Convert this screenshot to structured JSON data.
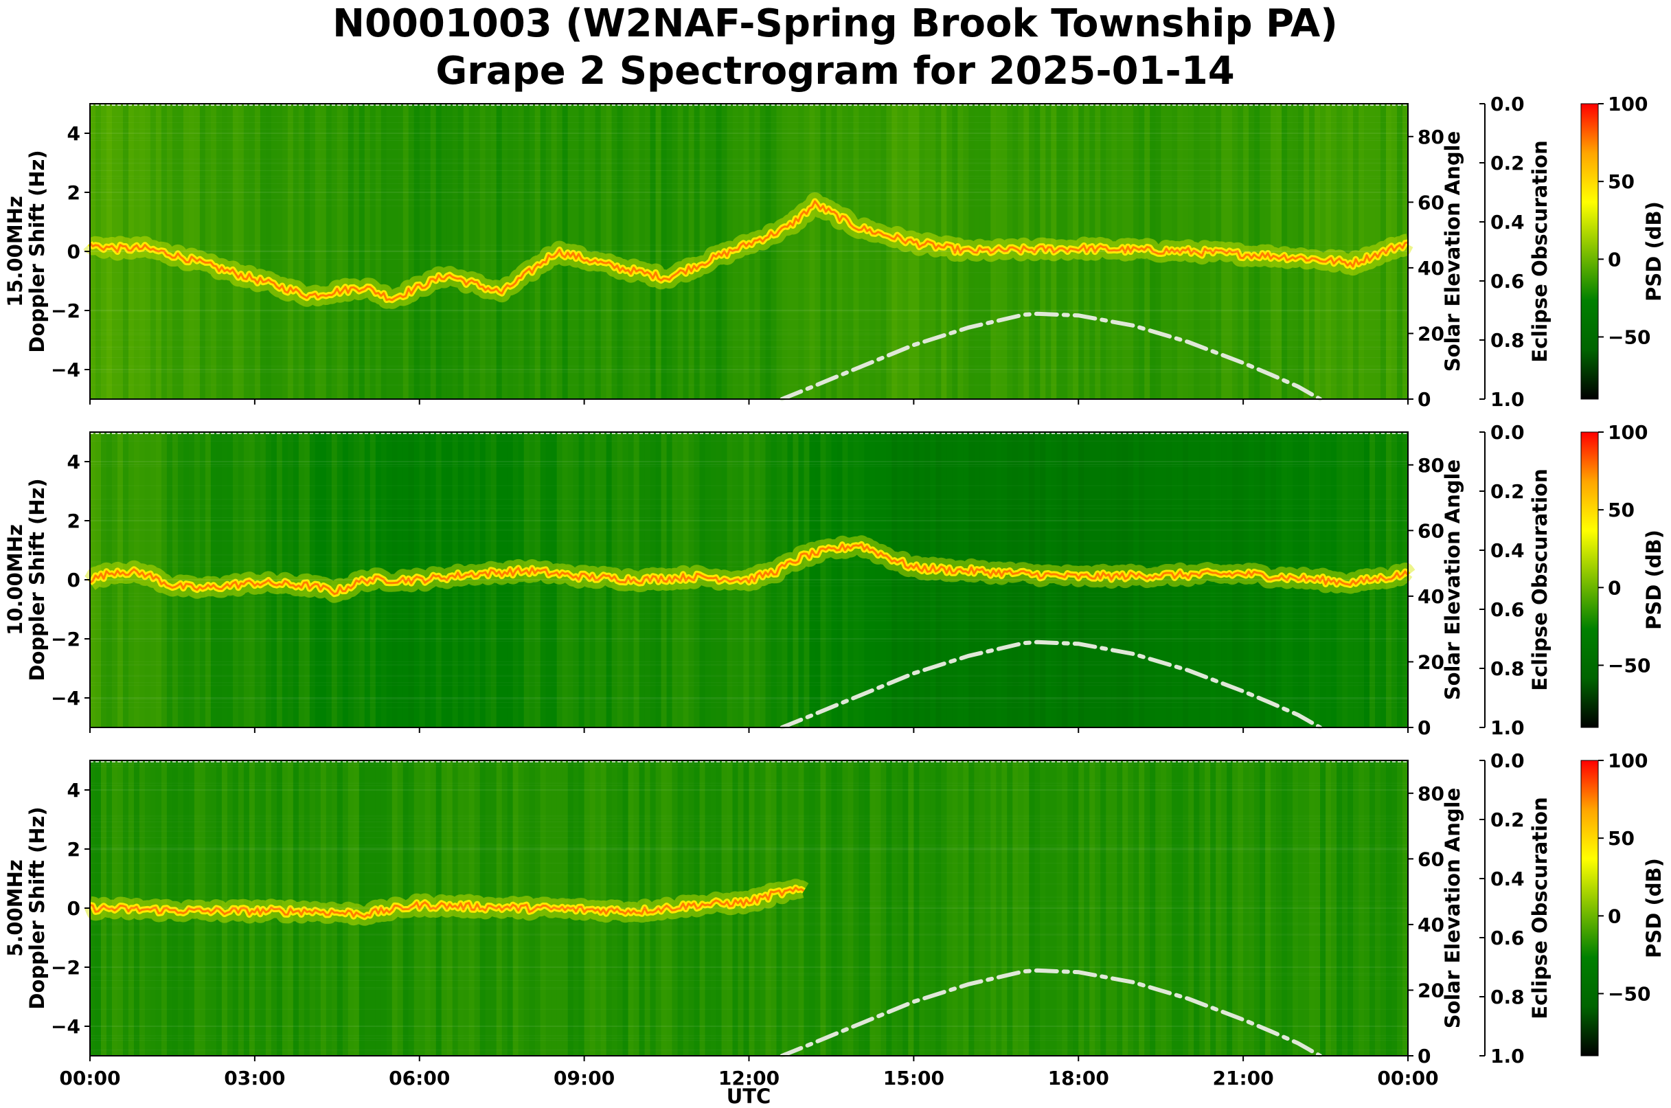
{
  "chart_data": {
    "type": "heatmap",
    "title": "N0001003 (W2NAF-Spring Brook Township PA)",
    "subtitle": "Grape 2 Spectrogram for 2025-01-14",
    "xlabel": "UTC",
    "x_ticks": [
      "00:00",
      "03:00",
      "06:00",
      "09:00",
      "12:00",
      "15:00",
      "18:00",
      "21:00",
      "00:00"
    ],
    "x_range_hours": [
      0,
      24
    ],
    "colormap": [
      "#000000",
      "#006400",
      "#008000",
      "#7fbf00",
      "#ffff00",
      "#ffa500",
      "#ff0000"
    ],
    "colorbar": {
      "label": "PSD (dB)",
      "range": [
        -90,
        100
      ],
      "ticks": [
        100,
        50,
        0,
        -50
      ],
      "tick_labels": [
        "100",
        "50",
        "0",
        "−50"
      ]
    },
    "eclipse_axis": {
      "label": "Eclipse Obscuration",
      "range": [
        0,
        1
      ],
      "inverted": true,
      "tick_labels": [
        "0.0",
        "0.2",
        "0.4",
        "0.6",
        "0.8",
        "1.0"
      ]
    },
    "panels": [
      {
        "name": "15.00MHz",
        "ylabel_line1": "15.00MHz",
        "ylabel_line2": "Doppler Shift (Hz)",
        "ylim": [
          -5,
          5
        ],
        "y_ticks": [
          4,
          2,
          0,
          -2,
          -4
        ],
        "y_tick_labels": [
          "4",
          "2",
          "0",
          "−2",
          "−4"
        ],
        "y2label": "Solar Elevation Angle",
        "y2lim": [
          0,
          90
        ],
        "y2_ticks": [
          "0",
          "20",
          "40",
          "60",
          "80"
        ],
        "doppler_trace": [
          [
            0.0,
            0.2
          ],
          [
            0.5,
            0.1
          ],
          [
            1.0,
            0.1
          ],
          [
            1.5,
            -0.1
          ],
          [
            4.0,
            -1.5
          ],
          [
            5.0,
            -1.2
          ],
          [
            5.5,
            -1.6
          ],
          [
            6.5,
            -0.8
          ],
          [
            7.5,
            -1.4
          ],
          [
            8.5,
            0.0
          ],
          [
            9.5,
            -0.5
          ],
          [
            10.5,
            -0.9
          ],
          [
            12.7,
            0.8
          ],
          [
            13.2,
            1.6
          ],
          [
            14.0,
            0.8
          ],
          [
            15.0,
            0.3
          ],
          [
            16.0,
            0.0
          ],
          [
            18.0,
            0.1
          ],
          [
            20.0,
            0.0
          ],
          [
            22.0,
            -0.2
          ],
          [
            23.0,
            -0.4
          ],
          [
            24.0,
            0.3
          ]
        ],
        "background_strength": [
          [
            0.0,
            0.6
          ],
          [
            3.0,
            0.5
          ],
          [
            6.0,
            0.45
          ],
          [
            9.0,
            0.45
          ],
          [
            12.0,
            0.45
          ],
          [
            12.7,
            0.5
          ],
          [
            15.0,
            0.55
          ],
          [
            18.0,
            0.5
          ],
          [
            21.0,
            0.5
          ],
          [
            24.0,
            0.55
          ]
        ]
      },
      {
        "name": "10.00MHz",
        "ylabel_line1": "10.00MHz",
        "ylabel_line2": "Doppler Shift (Hz)",
        "ylim": [
          -5,
          5
        ],
        "y_ticks": [
          4,
          2,
          0,
          -2,
          -4
        ],
        "y_tick_labels": [
          "4",
          "2",
          "0",
          "−2",
          "−4"
        ],
        "y2label": "Solar Elevation Angle",
        "y2lim": [
          0,
          90
        ],
        "y2_ticks": [
          "0",
          "20",
          "40",
          "60",
          "80"
        ],
        "doppler_trace": [
          [
            0.0,
            0.0
          ],
          [
            0.5,
            0.3
          ],
          [
            1.0,
            0.2
          ],
          [
            1.5,
            -0.2
          ],
          [
            2.0,
            -0.3
          ],
          [
            3.0,
            -0.1
          ],
          [
            4.0,
            -0.2
          ],
          [
            4.5,
            -0.4
          ],
          [
            5.0,
            0.0
          ],
          [
            6.0,
            0.0
          ],
          [
            7.0,
            0.2
          ],
          [
            8.0,
            0.3
          ],
          [
            9.0,
            0.1
          ],
          [
            10.0,
            0.0
          ],
          [
            11.0,
            0.1
          ],
          [
            12.0,
            0.0
          ],
          [
            12.5,
            0.3
          ],
          [
            13.0,
            0.8
          ],
          [
            14.0,
            1.2
          ],
          [
            15.0,
            0.4
          ],
          [
            18.0,
            0.1
          ],
          [
            21.0,
            0.2
          ],
          [
            23.0,
            -0.1
          ],
          [
            24.0,
            0.2
          ]
        ],
        "background_strength": [
          [
            0.0,
            0.55
          ],
          [
            2.0,
            0.45
          ],
          [
            5.0,
            0.35
          ],
          [
            6.0,
            0.3
          ],
          [
            9.0,
            0.4
          ],
          [
            12.0,
            0.45
          ],
          [
            12.7,
            0.4
          ],
          [
            15.0,
            0.2
          ],
          [
            18.0,
            0.15
          ],
          [
            21.0,
            0.25
          ],
          [
            24.0,
            0.4
          ]
        ]
      },
      {
        "name": "5.00MHz",
        "ylabel_line1": "5.00MHz",
        "ylabel_line2": "Doppler Shift (Hz)",
        "ylim": [
          -5,
          5
        ],
        "y_ticks": [
          4,
          2,
          0,
          -2,
          -4
        ],
        "y_tick_labels": [
          "4",
          "2",
          "0",
          "−2",
          "−4"
        ],
        "y2label": "Solar Elevation Angle",
        "y2lim": [
          0,
          90
        ],
        "y2_ticks": [
          "0",
          "20",
          "40",
          "60",
          "80"
        ],
        "doppler_trace": [
          [
            0.0,
            0.0
          ],
          [
            2.0,
            -0.1
          ],
          [
            4.0,
            -0.1
          ],
          [
            5.0,
            -0.2
          ],
          [
            6.0,
            0.1
          ],
          [
            8.0,
            0.0
          ],
          [
            10.0,
            -0.1
          ],
          [
            11.0,
            0.1
          ],
          [
            12.0,
            0.2
          ],
          [
            12.5,
            0.5
          ],
          [
            13.0,
            0.6
          ]
        ],
        "background_strength": [
          [
            0.0,
            0.45
          ],
          [
            6.0,
            0.45
          ],
          [
            12.0,
            0.45
          ],
          [
            18.0,
            0.45
          ],
          [
            24.0,
            0.45
          ]
        ]
      }
    ],
    "solar_elevation": {
      "style": "dash-dot",
      "color": "#e0e8d8",
      "points": [
        [
          12.6,
          0
        ],
        [
          13.0,
          2.7
        ],
        [
          14.0,
          9.6
        ],
        [
          15.0,
          16.5
        ],
        [
          16.0,
          21.8
        ],
        [
          17.0,
          25.7
        ],
        [
          17.25,
          26
        ],
        [
          18.0,
          25.5
        ],
        [
          19.0,
          22.4
        ],
        [
          20.0,
          17.4
        ],
        [
          21.0,
          11.0
        ],
        [
          21.5,
          7.5
        ],
        [
          22.0,
          3.8
        ],
        [
          22.4,
          0
        ]
      ]
    }
  }
}
